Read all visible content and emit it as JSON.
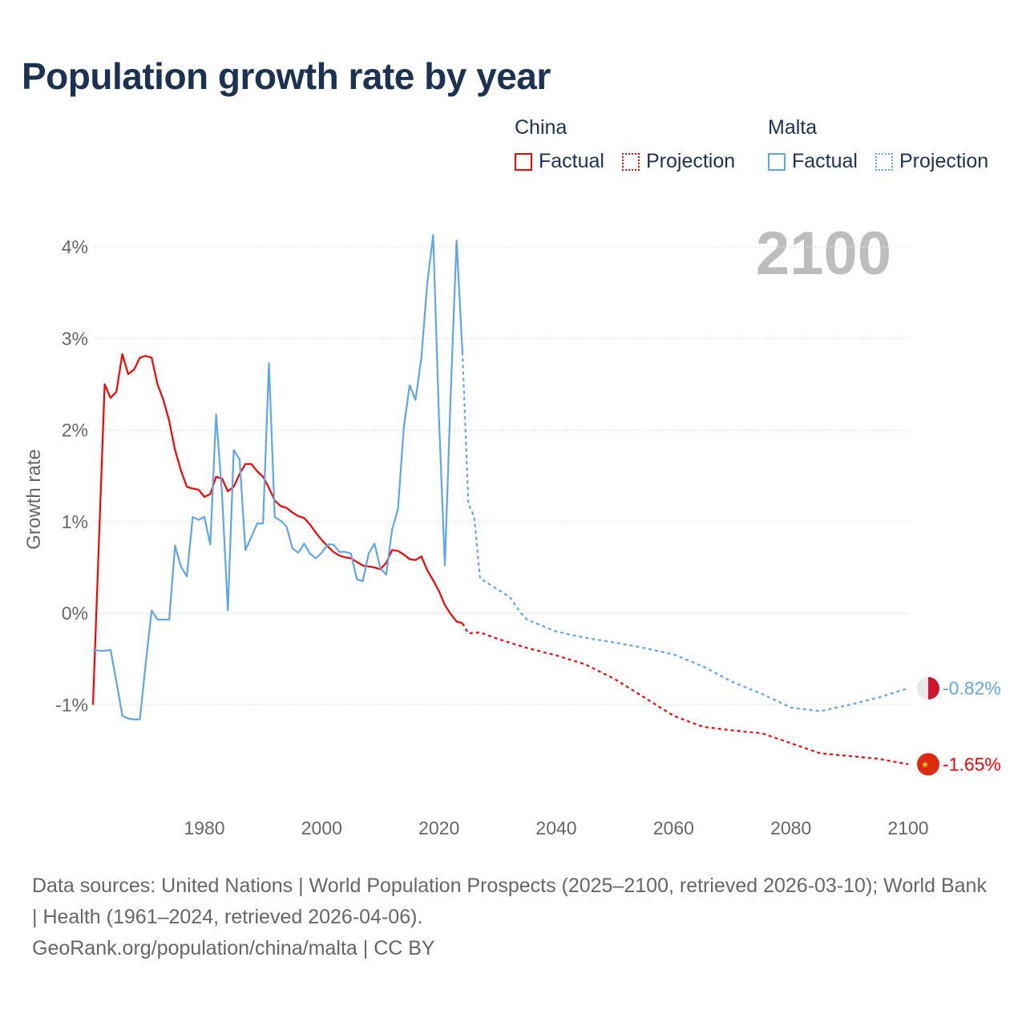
{
  "title": "Population growth rate by year",
  "legend": {
    "groups": [
      {
        "name": "China",
        "color": "#ff0000",
        "items": [
          "Factual",
          "Projection"
        ]
      },
      {
        "name": "Malta",
        "color": "#5ea6ea",
        "items": [
          "Factual",
          "Projection"
        ]
      }
    ]
  },
  "year_label": "2100",
  "footer": {
    "sources": "Data sources: United Nations | World Population Prospects (2025–2100, retrieved 2026-03-10); World Bank | Health (1961–2024, retrieved 2026-04-06).",
    "credit": "GeoRank.org/population/china/malta | CC BY"
  },
  "chart_data": {
    "type": "line",
    "title": "Population growth rate by year",
    "xlabel": "",
    "ylabel": "Growth rate",
    "xlim": [
      1961,
      2100
    ],
    "ylim": [
      -1.9,
      4.3
    ],
    "xticks": [
      1980,
      2000,
      2020,
      2040,
      2060,
      2080,
      2100
    ],
    "yticks": [
      -1,
      0,
      1,
      2,
      3,
      4
    ],
    "ytick_labels": [
      "-1%",
      "0%",
      "1%",
      "2%",
      "3%",
      "4%"
    ],
    "grid": true,
    "legend_position": "top-right",
    "series": [
      {
        "name": "China",
        "color": "#ff0000",
        "end_label": "-1.65%",
        "factual": {
          "x": [
            1961,
            1962,
            1963,
            1964,
            1965,
            1966,
            1967,
            1968,
            1969,
            1970,
            1971,
            1972,
            1973,
            1974,
            1975,
            1976,
            1977,
            1978,
            1979,
            1980,
            1981,
            1982,
            1983,
            1984,
            1985,
            1986,
            1987,
            1988,
            1989,
            1990,
            1991,
            1992,
            1993,
            1994,
            1995,
            1996,
            1997,
            1998,
            1999,
            2000,
            2001,
            2002,
            2003,
            2004,
            2005,
            2006,
            2007,
            2008,
            2009,
            2010,
            2011,
            2012,
            2013,
            2014,
            2015,
            2016,
            2017,
            2018,
            2019,
            2020,
            2021,
            2022,
            2023,
            2024
          ],
          "y": [
            -1.0,
            0.75,
            2.5,
            2.35,
            2.42,
            2.83,
            2.61,
            2.66,
            2.79,
            2.81,
            2.79,
            2.5,
            2.33,
            2.1,
            1.78,
            1.56,
            1.38,
            1.36,
            1.35,
            1.27,
            1.3,
            1.49,
            1.47,
            1.33,
            1.38,
            1.52,
            1.63,
            1.63,
            1.55,
            1.49,
            1.37,
            1.23,
            1.17,
            1.15,
            1.1,
            1.06,
            1.04,
            0.97,
            0.88,
            0.8,
            0.73,
            0.67,
            0.63,
            0.61,
            0.6,
            0.56,
            0.52,
            0.51,
            0.5,
            0.48,
            0.55,
            0.69,
            0.68,
            0.64,
            0.59,
            0.58,
            0.62,
            0.47,
            0.36,
            0.24,
            0.09,
            -0.01,
            -0.09,
            -0.11
          ]
        },
        "projection": {
          "x": [
            2024,
            2025,
            2027,
            2030,
            2035,
            2040,
            2045,
            2050,
            2055,
            2060,
            2065,
            2070,
            2075,
            2080,
            2085,
            2090,
            2095,
            2100
          ],
          "y": [
            -0.11,
            -0.22,
            -0.21,
            -0.28,
            -0.38,
            -0.46,
            -0.56,
            -0.72,
            -0.92,
            -1.12,
            -1.24,
            -1.28,
            -1.31,
            -1.42,
            -1.53,
            -1.56,
            -1.59,
            -1.65
          ]
        }
      },
      {
        "name": "Malta",
        "color": "#5ea6ea",
        "end_label": "-0.82%",
        "factual": {
          "x": [
            1961,
            1962,
            1963,
            1964,
            1965,
            1966,
            1967,
            1968,
            1969,
            1970,
            1971,
            1972,
            1973,
            1974,
            1975,
            1976,
            1977,
            1978,
            1979,
            1980,
            1981,
            1982,
            1983,
            1984,
            1985,
            1986,
            1987,
            1988,
            1989,
            1990,
            1991,
            1992,
            1993,
            1994,
            1995,
            1996,
            1997,
            1998,
            1999,
            2000,
            2001,
            2002,
            2003,
            2004,
            2005,
            2006,
            2007,
            2008,
            2009,
            2010,
            2011,
            2012,
            2013,
            2014,
            2015,
            2016,
            2017,
            2018,
            2019,
            2020,
            2021,
            2022,
            2023,
            2024
          ],
          "y": [
            -0.4,
            -0.41,
            -0.41,
            -0.4,
            -0.75,
            -1.12,
            -1.15,
            -1.16,
            -1.16,
            -0.55,
            0.03,
            -0.07,
            -0.07,
            -0.07,
            0.74,
            0.51,
            0.4,
            1.05,
            1.02,
            1.05,
            0.75,
            2.17,
            1.3,
            0.03,
            1.78,
            1.68,
            0.69,
            0.83,
            0.98,
            0.98,
            2.73,
            1.05,
            1.01,
            0.95,
            0.71,
            0.66,
            0.76,
            0.65,
            0.6,
            0.66,
            0.75,
            0.75,
            0.67,
            0.67,
            0.65,
            0.37,
            0.35,
            0.65,
            0.76,
            0.49,
            0.42,
            0.91,
            1.14,
            2.03,
            2.49,
            2.33,
            2.79,
            3.6,
            4.13,
            2.12,
            0.52,
            2.4,
            4.07,
            2.85
          ]
        },
        "projection": {
          "x": [
            2024,
            2025,
            2026,
            2027,
            2030,
            2032,
            2034,
            2035,
            2040,
            2045,
            2050,
            2055,
            2060,
            2065,
            2070,
            2075,
            2080,
            2085,
            2090,
            2095,
            2100
          ],
          "y": [
            2.85,
            1.2,
            1.05,
            0.38,
            0.26,
            0.18,
            0.0,
            -0.07,
            -0.2,
            -0.27,
            -0.32,
            -0.38,
            -0.45,
            -0.58,
            -0.75,
            -0.88,
            -1.03,
            -1.07,
            -1.0,
            -0.92,
            -0.82
          ]
        }
      }
    ]
  }
}
